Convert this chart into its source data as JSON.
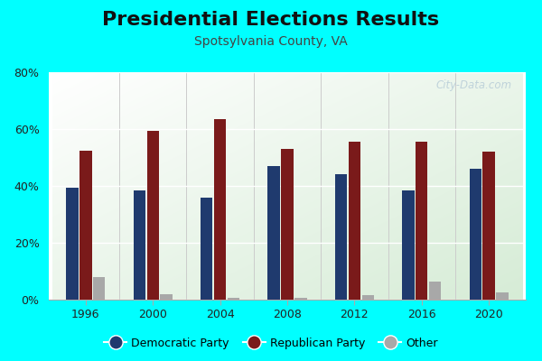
{
  "title": "Presidential Elections Results",
  "subtitle": "Spotsylvania County, VA",
  "years": [
    1996,
    2000,
    2004,
    2008,
    2012,
    2016,
    2020
  ],
  "democratic": [
    39.5,
    38.5,
    36.0,
    47.0,
    44.0,
    38.5,
    46.0
  ],
  "republican": [
    52.5,
    59.5,
    63.5,
    53.0,
    55.5,
    55.5,
    52.0
  ],
  "other": [
    8.0,
    2.0,
    0.5,
    0.5,
    1.5,
    6.5,
    2.5
  ],
  "dem_color": "#1f3a6e",
  "rep_color": "#7a1a1a",
  "other_color": "#a8a8a8",
  "bg_outer": "#00ffff",
  "ylim": [
    0,
    80
  ],
  "yticks": [
    0,
    20,
    40,
    60,
    80
  ],
  "ytick_labels": [
    "0%",
    "20%",
    "40%",
    "60%",
    "80%"
  ],
  "bar_width": 0.18,
  "bar_gap": 0.02,
  "title_fontsize": 16,
  "subtitle_fontsize": 10,
  "watermark": "City-Data.com"
}
